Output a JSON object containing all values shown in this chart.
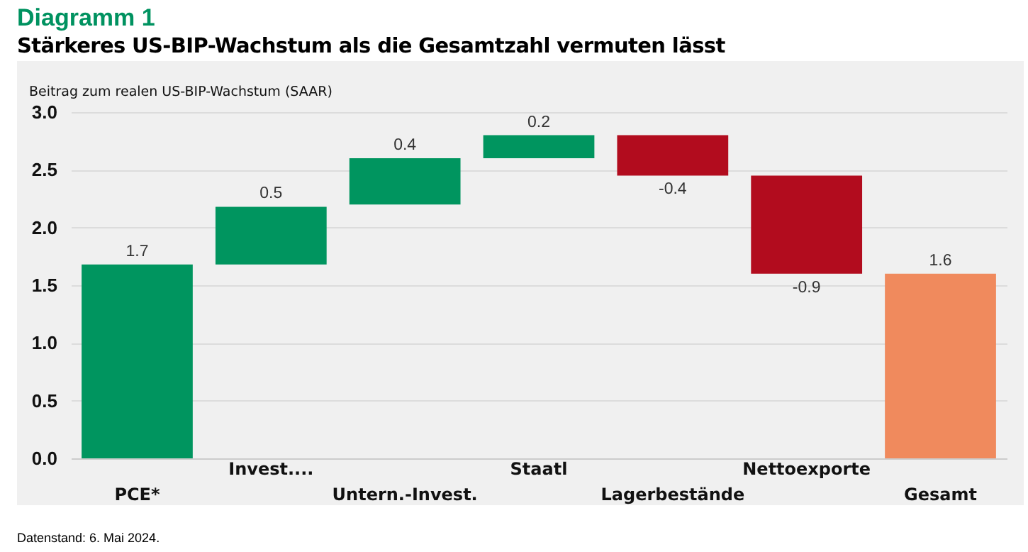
{
  "chart_data": {
    "type": "bar",
    "title": "Diagramm 1",
    "subtitle": "Stärkeres US-BIP-Wachstum als die Gesamtzahl vermuten lässt",
    "ylabel": "Beitrag zum realen US-BIP-Wachstum (SAAR)",
    "categories": [
      "PCE*",
      "Invest....",
      "Untern.-Invest.",
      "Staatl",
      "Lagerbestände",
      "Nettoexporte",
      "Gesamt"
    ],
    "values": [
      1.68,
      0.5,
      0.4,
      0.2,
      -0.35,
      -0.85,
      1.6
    ],
    "base": [
      0,
      1.68,
      2.2,
      2.6,
      2.8,
      2.45,
      0
    ],
    "colors": [
      "#00955f",
      "#00955f",
      "#00955f",
      "#00955f",
      "#b20c1e",
      "#b20c1e",
      "#f08a5d"
    ],
    "value_labels": [
      "1.7",
      "0.5",
      "0.4",
      "0.2",
      "-0.4",
      "-0.9",
      "1.6"
    ],
    "ylim": [
      0,
      3
    ],
    "yticks": [
      {
        "value": 0,
        "label": "0.0"
      },
      {
        "value": 0.5,
        "label": "0.5"
      },
      {
        "value": 1,
        "label": "1.0"
      },
      {
        "value": 1.5,
        "label": "1.5"
      },
      {
        "value": 2,
        "label": "2.0"
      },
      {
        "value": 2.5,
        "label": "2.5"
      },
      {
        "value": 3,
        "label": "3.0"
      }
    ],
    "grid": "y",
    "legend": false,
    "annotations": [
      "Datenstand: 6. Mai 2024."
    ]
  }
}
